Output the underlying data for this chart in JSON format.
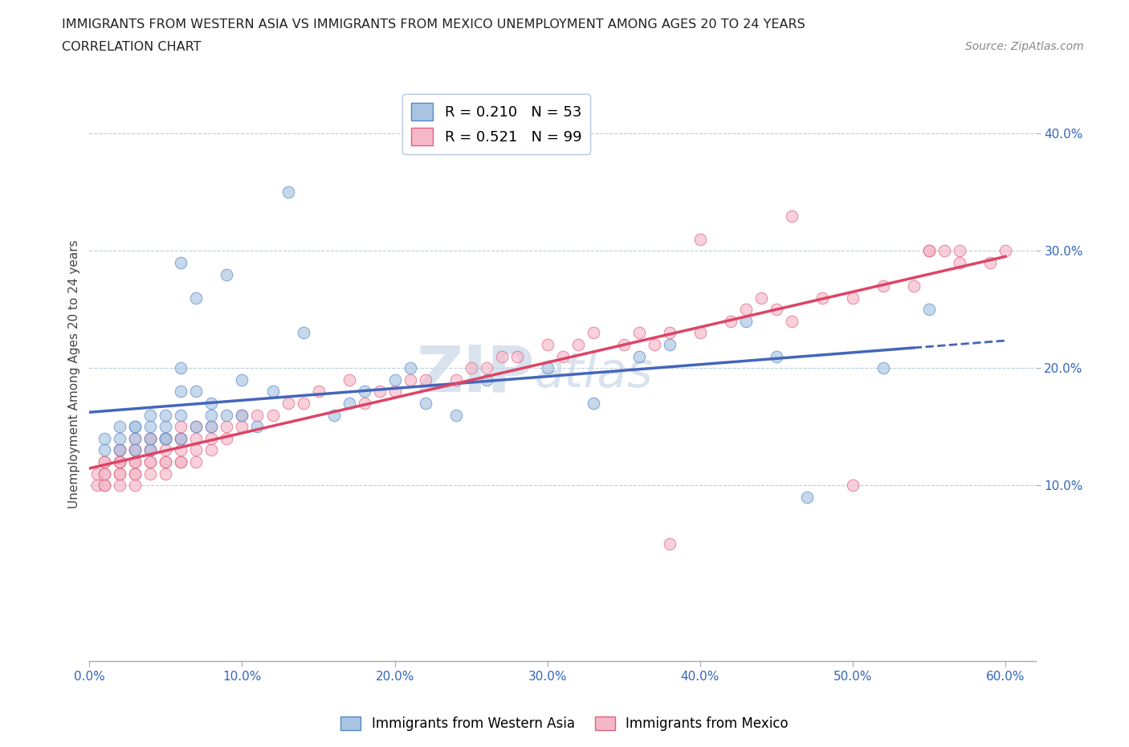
{
  "title_line1": "IMMIGRANTS FROM WESTERN ASIA VS IMMIGRANTS FROM MEXICO UNEMPLOYMENT AMONG AGES 20 TO 24 YEARS",
  "title_line2": "CORRELATION CHART",
  "source_text": "Source: ZipAtlas.com",
  "ylabel": "Unemployment Among Ages 20 to 24 years",
  "legend_label_blue": "Immigrants from Western Asia",
  "legend_label_pink": "Immigrants from Mexico",
  "R_blue": 0.21,
  "N_blue": 53,
  "R_pink": 0.521,
  "N_pink": 99,
  "blue_fill": "#A8C4E0",
  "blue_edge": "#5588CC",
  "pink_fill": "#F4B8C8",
  "pink_edge": "#E06080",
  "blue_line_color": "#4466BB",
  "pink_line_color": "#DD4466",
  "watermark_color": "#C8D8E8",
  "xlim": [
    0.0,
    0.62
  ],
  "ylim": [
    -0.05,
    0.44
  ],
  "xticks": [
    0.0,
    0.1,
    0.2,
    0.3,
    0.4,
    0.5,
    0.6
  ],
  "yticks": [
    0.1,
    0.2,
    0.3,
    0.4
  ],
  "blue_x": [
    0.01,
    0.01,
    0.02,
    0.02,
    0.02,
    0.03,
    0.03,
    0.03,
    0.03,
    0.04,
    0.04,
    0.04,
    0.04,
    0.05,
    0.05,
    0.05,
    0.05,
    0.06,
    0.06,
    0.06,
    0.06,
    0.06,
    0.07,
    0.07,
    0.07,
    0.08,
    0.08,
    0.08,
    0.09,
    0.09,
    0.1,
    0.1,
    0.11,
    0.12,
    0.13,
    0.14,
    0.16,
    0.17,
    0.18,
    0.2,
    0.21,
    0.22,
    0.24,
    0.26,
    0.3,
    0.33,
    0.36,
    0.38,
    0.43,
    0.45,
    0.47,
    0.52,
    0.55
  ],
  "blue_y": [
    0.13,
    0.14,
    0.13,
    0.14,
    0.15,
    0.14,
    0.15,
    0.13,
    0.15,
    0.13,
    0.14,
    0.15,
    0.16,
    0.14,
    0.15,
    0.16,
    0.14,
    0.14,
    0.18,
    0.16,
    0.29,
    0.2,
    0.15,
    0.18,
    0.26,
    0.16,
    0.17,
    0.15,
    0.16,
    0.28,
    0.16,
    0.19,
    0.15,
    0.18,
    0.35,
    0.23,
    0.16,
    0.17,
    0.18,
    0.19,
    0.2,
    0.17,
    0.16,
    0.19,
    0.2,
    0.17,
    0.21,
    0.22,
    0.24,
    0.21,
    0.09,
    0.2,
    0.25
  ],
  "pink_x": [
    0.005,
    0.005,
    0.01,
    0.01,
    0.01,
    0.01,
    0.01,
    0.01,
    0.02,
    0.02,
    0.02,
    0.02,
    0.02,
    0.02,
    0.02,
    0.02,
    0.03,
    0.03,
    0.03,
    0.03,
    0.03,
    0.03,
    0.03,
    0.03,
    0.04,
    0.04,
    0.04,
    0.04,
    0.04,
    0.04,
    0.04,
    0.05,
    0.05,
    0.05,
    0.05,
    0.05,
    0.05,
    0.06,
    0.06,
    0.06,
    0.06,
    0.06,
    0.06,
    0.07,
    0.07,
    0.07,
    0.07,
    0.08,
    0.08,
    0.08,
    0.09,
    0.09,
    0.1,
    0.1,
    0.11,
    0.12,
    0.13,
    0.14,
    0.15,
    0.17,
    0.18,
    0.19,
    0.2,
    0.21,
    0.22,
    0.24,
    0.25,
    0.26,
    0.27,
    0.28,
    0.3,
    0.31,
    0.32,
    0.33,
    0.35,
    0.36,
    0.37,
    0.38,
    0.4,
    0.42,
    0.43,
    0.44,
    0.45,
    0.46,
    0.48,
    0.5,
    0.52,
    0.54,
    0.55,
    0.57,
    0.4,
    0.46,
    0.38,
    0.5,
    0.56,
    0.57,
    0.55,
    0.59,
    0.6
  ],
  "pink_y": [
    0.1,
    0.11,
    0.1,
    0.1,
    0.11,
    0.11,
    0.12,
    0.12,
    0.1,
    0.11,
    0.11,
    0.12,
    0.12,
    0.13,
    0.13,
    0.12,
    0.1,
    0.11,
    0.11,
    0.12,
    0.12,
    0.13,
    0.13,
    0.14,
    0.11,
    0.12,
    0.12,
    0.13,
    0.13,
    0.14,
    0.14,
    0.11,
    0.12,
    0.12,
    0.13,
    0.14,
    0.14,
    0.12,
    0.12,
    0.13,
    0.14,
    0.14,
    0.15,
    0.12,
    0.13,
    0.14,
    0.15,
    0.13,
    0.14,
    0.15,
    0.14,
    0.15,
    0.15,
    0.16,
    0.16,
    0.16,
    0.17,
    0.17,
    0.18,
    0.19,
    0.17,
    0.18,
    0.18,
    0.19,
    0.19,
    0.19,
    0.2,
    0.2,
    0.21,
    0.21,
    0.22,
    0.21,
    0.22,
    0.23,
    0.22,
    0.23,
    0.22,
    0.23,
    0.23,
    0.24,
    0.25,
    0.26,
    0.25,
    0.24,
    0.26,
    0.26,
    0.27,
    0.27,
    0.3,
    0.29,
    0.31,
    0.33,
    0.05,
    0.1,
    0.3,
    0.3,
    0.3,
    0.29,
    0.3
  ]
}
